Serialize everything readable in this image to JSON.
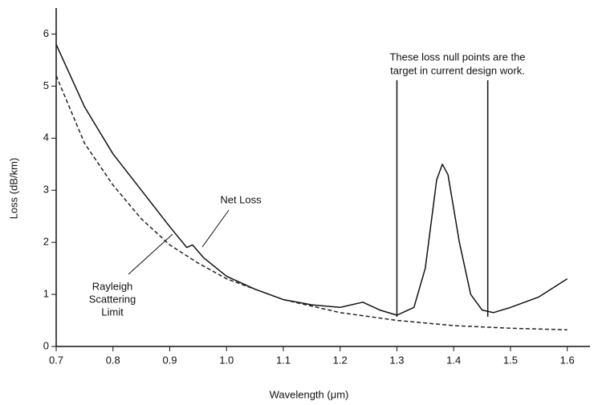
{
  "chart_data": {
    "type": "line",
    "xlabel": "Wavelength (μm)",
    "ylabel": "Loss (dB/km)",
    "xlim": [
      0.7,
      1.64
    ],
    "ylim": [
      0,
      6.5
    ],
    "xticks": [
      0.7,
      0.8,
      0.9,
      {
        "value": 1,
        "label": "1.0"
      },
      1.1,
      1.2,
      1.3,
      1.4,
      1.5,
      1.6
    ],
    "yticks": [
      0,
      1,
      2,
      3,
      4,
      5,
      6
    ],
    "series": [
      {
        "name": "Net Loss",
        "color": "#111111",
        "dash": false,
        "x": [
          0.7,
          0.75,
          0.8,
          0.85,
          0.9,
          0.93,
          0.94,
          0.96,
          1.0,
          1.05,
          1.1,
          1.15,
          1.2,
          1.24,
          1.27,
          1.3,
          1.33,
          1.35,
          1.37,
          1.38,
          1.39,
          1.41,
          1.43,
          1.45,
          1.47,
          1.5,
          1.55,
          1.6
        ],
        "values": [
          5.8,
          4.6,
          3.7,
          3.0,
          2.3,
          1.9,
          1.95,
          1.7,
          1.35,
          1.1,
          0.9,
          0.8,
          0.75,
          0.85,
          0.7,
          0.6,
          0.75,
          1.5,
          3.2,
          3.5,
          3.3,
          2.0,
          1.0,
          0.7,
          0.65,
          0.75,
          0.95,
          1.3
        ]
      },
      {
        "name": "Rayleigh Scattering Limit",
        "color": "#222222",
        "dash": true,
        "x": [
          0.7,
          0.75,
          0.8,
          0.85,
          0.9,
          0.95,
          1.0,
          1.1,
          1.2,
          1.3,
          1.4,
          1.5,
          1.6
        ],
        "values": [
          5.2,
          3.9,
          3.1,
          2.45,
          1.95,
          1.6,
          1.3,
          0.9,
          0.65,
          0.5,
          0.4,
          0.35,
          0.32
        ]
      }
    ],
    "annotation": {
      "lines": [
        "These loss null points are the",
        "target in current design work."
      ],
      "x": [
        1.3,
        1.46
      ]
    },
    "labels": {
      "net_loss": [
        "Net Loss"
      ],
      "rayleigh": [
        "Rayleigh",
        "Scattering",
        "Limit"
      ]
    }
  }
}
